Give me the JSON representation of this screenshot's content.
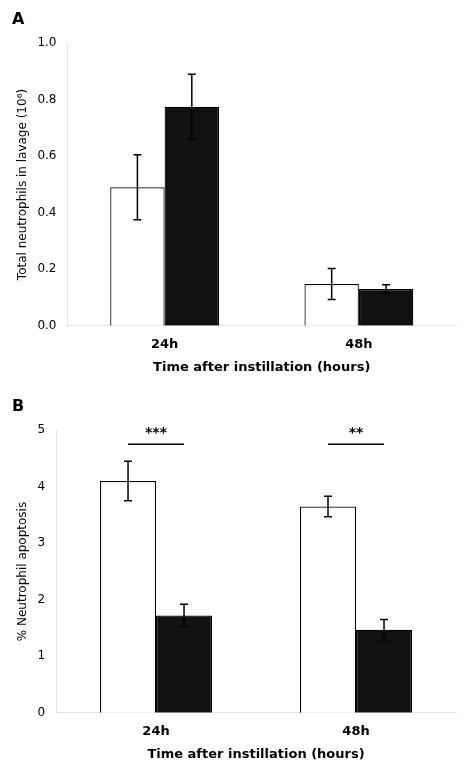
{
  "chart_data": [
    {
      "type": "bar",
      "title": "A",
      "categories": [
        "24h",
        "48h"
      ],
      "series": [
        {
          "color": "#ffffff",
          "values": [
            0.49,
            0.148
          ],
          "errors": [
            0.115,
            0.055
          ]
        },
        {
          "color": "#111111",
          "values": [
            0.775,
            0.13
          ],
          "errors": [
            0.115,
            0.015
          ]
        }
      ],
      "ylabel": "Total neutrophils in lavage (10⁶)",
      "xlabel": "Time after instillation (hours)",
      "ylim": [
        0,
        1.0
      ],
      "yticks": [
        {
          "value": 0.0,
          "label": "0.0"
        },
        0.2,
        0.4,
        0.6,
        0.8,
        {
          "value": 1.0,
          "label": "1.0"
        }
      ],
      "grid": false
    },
    {
      "type": "bar",
      "title": "B",
      "categories": [
        "24h",
        "48h"
      ],
      "series": [
        {
          "color": "#ffffff",
          "values": [
            4.1,
            3.65
          ],
          "errors": [
            0.35,
            0.18
          ]
        },
        {
          "color": "#111111",
          "values": [
            1.72,
            1.47
          ],
          "errors": [
            0.2,
            0.18
          ]
        }
      ],
      "ylabel": "% Neutrophil apoptosis",
      "xlabel": "Time after instillation (hours)",
      "ylim": [
        0,
        5
      ],
      "yticks": [
        0,
        1,
        2,
        3,
        4,
        5
      ],
      "annotations": [
        {
          "text": "***",
          "x": "24h",
          "y": 4.82,
          "bracket_y": 4.75
        },
        {
          "text": "**",
          "x": "48h",
          "y": 4.82,
          "bracket_y": 4.75
        }
      ],
      "grid": false
    }
  ]
}
